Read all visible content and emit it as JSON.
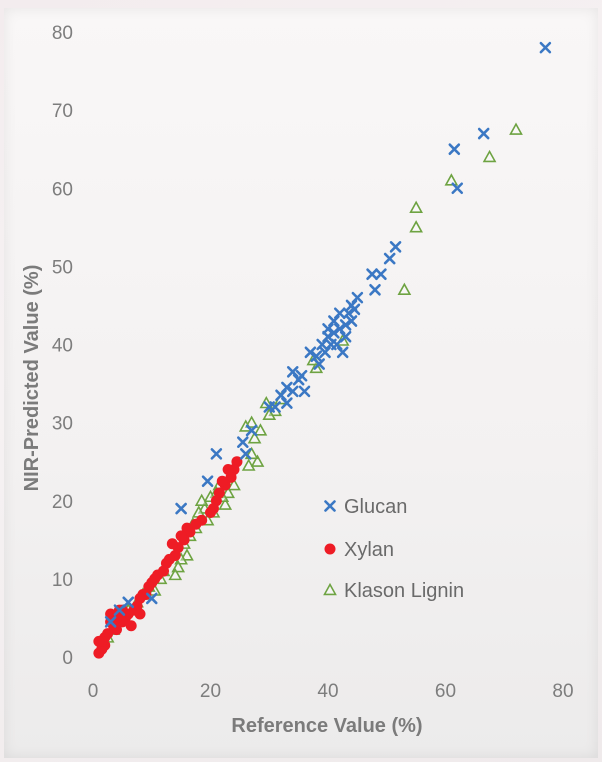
{
  "chart_data": {
    "type": "scatter",
    "xlabel": "Reference Value (%)",
    "ylabel": "NIR-Predicted Value (%)",
    "xlim": [
      0,
      80
    ],
    "ylim": [
      0,
      80
    ],
    "xticks": [
      "0",
      "20",
      "40",
      "60",
      "80"
    ],
    "yticks": [
      "0",
      "10",
      "20",
      "30",
      "40",
      "50",
      "60",
      "70",
      "80"
    ],
    "grid": false,
    "legend_position": "inside lower-right",
    "series": [
      {
        "name": "Glucan",
        "marker": "x",
        "color": "#3b78c4",
        "points": [
          [
            77,
            78
          ],
          [
            66.5,
            67
          ],
          [
            61.5,
            65
          ],
          [
            62,
            60
          ],
          [
            51.5,
            52.5
          ],
          [
            50.5,
            51
          ],
          [
            49,
            49
          ],
          [
            48,
            47
          ],
          [
            47.5,
            49
          ],
          [
            45,
            46
          ],
          [
            44.5,
            44.5
          ],
          [
            44,
            45
          ],
          [
            44,
            43
          ],
          [
            43.5,
            44
          ],
          [
            43,
            42.5
          ],
          [
            43,
            41
          ],
          [
            42.5,
            39
          ],
          [
            42,
            44
          ],
          [
            42,
            42
          ],
          [
            41.5,
            40
          ],
          [
            41,
            43
          ],
          [
            41,
            41.5
          ],
          [
            40.5,
            40
          ],
          [
            40,
            42
          ],
          [
            40,
            41
          ],
          [
            39.5,
            39
          ],
          [
            39,
            40
          ],
          [
            38.5,
            37.5
          ],
          [
            38,
            38.5
          ],
          [
            37,
            39
          ],
          [
            36,
            34
          ],
          [
            35.5,
            36
          ],
          [
            35,
            35.5
          ],
          [
            34,
            34
          ],
          [
            34,
            36.5
          ],
          [
            33,
            34.5
          ],
          [
            33,
            32.5
          ],
          [
            32,
            33.5
          ],
          [
            31,
            32
          ],
          [
            30,
            32
          ],
          [
            27,
            29
          ],
          [
            26,
            26
          ],
          [
            25.5,
            27.5
          ],
          [
            21,
            26
          ],
          [
            19.5,
            22.5
          ],
          [
            15,
            19
          ],
          [
            10,
            7.5
          ],
          [
            6,
            7
          ],
          [
            4.5,
            6
          ],
          [
            3,
            4.5
          ]
        ]
      },
      {
        "name": "Xylan",
        "marker": "circle",
        "color": "#ee1c25",
        "points": [
          [
            24.5,
            25
          ],
          [
            24,
            24
          ],
          [
            23.5,
            23
          ],
          [
            23,
            24
          ],
          [
            22.5,
            22
          ],
          [
            22,
            22.5
          ],
          [
            21.5,
            21
          ],
          [
            21,
            20
          ],
          [
            20.5,
            19
          ],
          [
            20,
            18.5
          ],
          [
            18.5,
            17.5
          ],
          [
            17.5,
            17
          ],
          [
            16.5,
            16
          ],
          [
            16,
            16.5
          ],
          [
            15.5,
            15
          ],
          [
            15,
            15.5
          ],
          [
            14.5,
            14
          ],
          [
            14,
            13
          ],
          [
            13.5,
            14.5
          ],
          [
            13,
            12.5
          ],
          [
            12.5,
            12
          ],
          [
            11,
            10.5
          ],
          [
            10.5,
            10
          ],
          [
            10,
            9.5
          ],
          [
            9.5,
            9
          ],
          [
            9,
            8
          ],
          [
            8.5,
            8
          ],
          [
            8,
            7.5
          ],
          [
            7.5,
            6.5
          ],
          [
            7,
            6
          ],
          [
            6,
            5.5
          ],
          [
            5.5,
            5
          ],
          [
            5,
            4.5
          ],
          [
            4.5,
            6
          ],
          [
            4,
            5
          ],
          [
            4,
            3.5
          ],
          [
            3.5,
            4
          ],
          [
            3,
            5.5
          ],
          [
            3,
            4.5
          ],
          [
            2.5,
            3
          ],
          [
            2,
            2.5
          ],
          [
            2,
            1.5
          ],
          [
            1.5,
            1
          ],
          [
            1.5,
            2
          ],
          [
            1,
            0.5
          ],
          [
            1,
            2
          ],
          [
            5,
            6
          ],
          [
            6.5,
            4
          ],
          [
            8,
            5.5
          ],
          [
            12,
            11
          ]
        ]
      },
      {
        "name": "Klason Lignin",
        "marker": "triangle",
        "color": "#6ea342",
        "points": [
          [
            72,
            67.5
          ],
          [
            67.5,
            64
          ],
          [
            61,
            61
          ],
          [
            55,
            57.5
          ],
          [
            55,
            55
          ],
          [
            53,
            47
          ],
          [
            42.5,
            40.5
          ],
          [
            38,
            37
          ],
          [
            37.5,
            38
          ],
          [
            32,
            33
          ],
          [
            31,
            31.5
          ],
          [
            30,
            31
          ],
          [
            29.5,
            32.5
          ],
          [
            28.5,
            29
          ],
          [
            28,
            25
          ],
          [
            27.5,
            28
          ],
          [
            27,
            30
          ],
          [
            27,
            26
          ],
          [
            26.5,
            24.5
          ],
          [
            26,
            29.5
          ],
          [
            24,
            22
          ],
          [
            23,
            21
          ],
          [
            22.5,
            19.5
          ],
          [
            22,
            20.5
          ],
          [
            21.5,
            22
          ],
          [
            21,
            21
          ],
          [
            20.5,
            18.5
          ],
          [
            20,
            20.5
          ],
          [
            19.5,
            17.5
          ],
          [
            19,
            19
          ],
          [
            18.5,
            20
          ],
          [
            18,
            18.5
          ],
          [
            17.5,
            16.5
          ],
          [
            17,
            17
          ],
          [
            16.5,
            15.5
          ],
          [
            16,
            13
          ],
          [
            15.5,
            14.5
          ],
          [
            15,
            12.5
          ],
          [
            14.5,
            11.5
          ],
          [
            14,
            10.5
          ],
          [
            12,
            11
          ],
          [
            11.5,
            10
          ],
          [
            10.5,
            8.5
          ],
          [
            9.5,
            9
          ],
          [
            8.5,
            8
          ],
          [
            7.5,
            7
          ],
          [
            6,
            6
          ],
          [
            5,
            5.5
          ],
          [
            3.5,
            3.5
          ],
          [
            2.5,
            2.5
          ]
        ]
      }
    ]
  }
}
